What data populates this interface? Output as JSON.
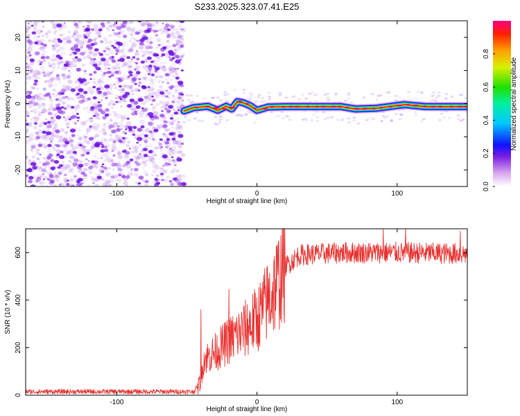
{
  "title": "S233.2025.323.07.41.E25",
  "chart_data": [
    {
      "type": "heatmap",
      "name": "spectrogram",
      "xlabel": "Height of straight line (km)",
      "ylabel": "Frequency (Hz)",
      "xlim": [
        -165,
        150
      ],
      "ylim": [
        -25,
        25
      ],
      "x_ticks": [
        -100,
        0,
        100
      ],
      "x_tick_labels": [
        "-100",
        "0",
        "100"
      ],
      "y_ticks": [
        20,
        10,
        0,
        -10,
        -20
      ],
      "y_tick_labels": [
        "20",
        "10",
        "0",
        "-10",
        "-20"
      ],
      "noise_region_x": [
        -165,
        -52
      ],
      "signal_start_x": -52,
      "signal_center_hz": [
        {
          "x": -52,
          "y": -2.2
        },
        {
          "x": -45,
          "y": -1.2
        },
        {
          "x": -35,
          "y": -0.8
        },
        {
          "x": -28,
          "y": -2.0
        },
        {
          "x": -22,
          "y": -0.8
        },
        {
          "x": -18,
          "y": -1.6
        },
        {
          "x": -14,
          "y": 0.6
        },
        {
          "x": -10,
          "y": 0.3
        },
        {
          "x": -5,
          "y": -0.6
        },
        {
          "x": 0,
          "y": -2.0
        },
        {
          "x": 8,
          "y": -1.0
        },
        {
          "x": 20,
          "y": -0.9
        },
        {
          "x": 60,
          "y": -0.9
        },
        {
          "x": 70,
          "y": -1.6
        },
        {
          "x": 85,
          "y": -1.4
        },
        {
          "x": 105,
          "y": -0.3
        },
        {
          "x": 120,
          "y": -0.9
        },
        {
          "x": 150,
          "y": -0.9
        }
      ],
      "colorbar": {
        "label": "Normalized spectral amplitude",
        "range": [
          0,
          1
        ],
        "ticks": [
          0.0,
          0.2,
          0.4,
          0.6,
          0.8
        ],
        "tick_labels": [
          "0.0",
          "0.2",
          "0.4",
          "0.6",
          "0.8"
        ]
      }
    },
    {
      "type": "line",
      "name": "snr",
      "xlabel": "Height of straight line (km)",
      "ylabel": "SNR (10 * v/v)",
      "xlim": [
        -165,
        150
      ],
      "ylim": [
        0,
        700
      ],
      "x_ticks": [
        -100,
        0,
        100
      ],
      "x_tick_labels": [
        "-100",
        "0",
        "100"
      ],
      "y_ticks": [
        0,
        200,
        400,
        600
      ],
      "y_tick_labels": [
        "0",
        "200",
        "400",
        "600"
      ],
      "series": [
        {
          "name": "SNR",
          "color": "#e8302e",
          "trend": [
            {
              "x": -165,
              "y": 15
            },
            {
              "x": -45,
              "y": 15
            },
            {
              "x": -40,
              "y": 60
            },
            {
              "x": -38,
              "y": 150
            },
            {
              "x": -30,
              "y": 180
            },
            {
              "x": -20,
              "y": 230
            },
            {
              "x": -10,
              "y": 270
            },
            {
              "x": 0,
              "y": 320
            },
            {
              "x": 10,
              "y": 420
            },
            {
              "x": 20,
              "y": 540
            },
            {
              "x": 30,
              "y": 590
            },
            {
              "x": 60,
              "y": 600
            },
            {
              "x": 100,
              "y": 600
            },
            {
              "x": 150,
              "y": 595
            }
          ],
          "peaks": [
            {
              "x": -40,
              "y": 360
            },
            {
              "x": -20,
              "y": 445
            },
            {
              "x": 90,
              "y": 700
            },
            {
              "x": 106,
              "y": 700
            },
            {
              "x": 145,
              "y": 690
            }
          ]
        }
      ]
    }
  ]
}
